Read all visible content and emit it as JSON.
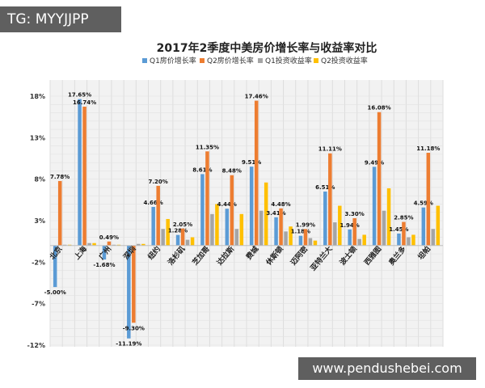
{
  "watermark_top": "TG: MYYJJPP",
  "watermark_bottom": "www.pendushebei.com",
  "chart_data": {
    "type": "bar",
    "title": "2017年2季度中美房价增长率与收益率对比",
    "legend_position": "top",
    "grid": true,
    "ylim": [
      -12,
      18
    ],
    "yticks": [
      {
        "v": 18,
        "label": "18%"
      },
      {
        "v": 13,
        "label": "13%"
      },
      {
        "v": 8,
        "label": "8%"
      },
      {
        "v": 3,
        "label": "3%"
      },
      {
        "v": -2,
        "label": "-2%"
      },
      {
        "v": -7,
        "label": "-7%"
      },
      {
        "v": -12,
        "label": "-12%"
      }
    ],
    "categories": [
      "北京",
      "上海",
      "广州",
      "深圳",
      "纽约",
      "洛杉矶",
      "芝加哥",
      "达拉斯",
      "费城",
      "休斯顿",
      "迈阿密",
      "亚特兰大",
      "波士顿",
      "西雅图",
      "奥兰多",
      "坦帕"
    ],
    "series": [
      {
        "name": "Q1房价增长率",
        "color": "#5b9bd5",
        "values": [
          -5.0,
          17.65,
          -1.68,
          -11.19,
          4.66,
          1.28,
          8.61,
          4.44,
          9.51,
          3.41,
          1.18,
          6.51,
          1.94,
          9.49,
          1.45,
          4.59
        ],
        "labels": [
          "-5.00%",
          "17.65%",
          "-1.68%",
          "-11.19%",
          "4.66%",
          "1.28%",
          "8.61%",
          "4.44%",
          "9.51%",
          "3.41%",
          "1.18%",
          "6.51%",
          "1.94%",
          "9.49%",
          "1.45%",
          "4.59%"
        ]
      },
      {
        "name": "Q2房价增长率",
        "color": "#ed7d31",
        "values": [
          7.78,
          16.74,
          0.49,
          -9.3,
          7.2,
          2.05,
          11.35,
          8.48,
          17.46,
          4.48,
          1.99,
          11.11,
          3.3,
          16.08,
          2.85,
          11.18
        ],
        "labels": [
          "7.78%",
          "16.74%",
          "0.49%",
          "-9.30%",
          "7.20%",
          "2.05%",
          "11.35%",
          "8.48%",
          "17.46%",
          "4.48%",
          "1.99%",
          "11.11%",
          "3.30%",
          "16.08%",
          "2.85%",
          "11.18%"
        ]
      },
      {
        "name": "Q1投资收益率",
        "color": "#a5a5a5",
        "values": [
          0.1,
          0.3,
          0.1,
          0.2,
          2.0,
          0.7,
          3.8,
          2.0,
          4.2,
          1.7,
          0.9,
          2.8,
          0.8,
          4.2,
          1.0,
          2.0
        ],
        "labels": []
      },
      {
        "name": "Q2投资收益率",
        "color": "#ffc000",
        "values": [
          0.1,
          0.3,
          0.1,
          0.2,
          3.2,
          1.0,
          5.0,
          3.8,
          7.6,
          2.3,
          0.6,
          4.8,
          1.3,
          6.9,
          1.3,
          4.8
        ],
        "labels": []
      }
    ]
  }
}
